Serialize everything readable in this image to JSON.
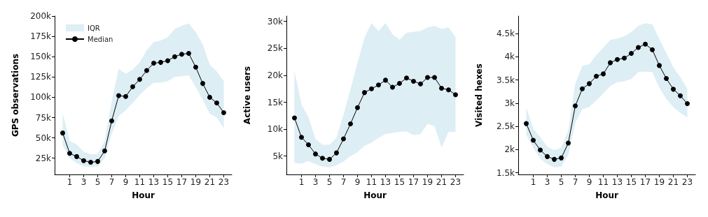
{
  "chart_data": [
    {
      "type": "line",
      "xlabel": "Hour",
      "ylabel": "GPS observations",
      "x": [
        0,
        1,
        2,
        3,
        4,
        5,
        6,
        7,
        8,
        9,
        10,
        11,
        12,
        13,
        14,
        15,
        16,
        17,
        18,
        19,
        20,
        21,
        22,
        23
      ],
      "xlim": [
        -1.15,
        24.15
      ],
      "xticks": [
        1,
        3,
        5,
        7,
        9,
        11,
        13,
        15,
        17,
        19,
        21,
        23
      ],
      "ylim": [
        5000,
        200000
      ],
      "yticks": [
        {
          "value": 25000,
          "label": "25k"
        },
        {
          "value": 50000,
          "label": "50k"
        },
        {
          "value": 75000,
          "label": "75k"
        },
        {
          "value": 100000,
          "label": "100k"
        },
        {
          "value": 125000,
          "label": "125k"
        },
        {
          "value": 150000,
          "label": "150k"
        },
        {
          "value": 175000,
          "label": "175k"
        },
        {
          "value": 200000,
          "label": "200k"
        }
      ],
      "grid": false,
      "legend": "top left",
      "marker": "circle",
      "line_style": "solid",
      "series": [
        {
          "name": "IQR",
          "type": "area",
          "color": "#ddeef5",
          "values": [
            null,
            null,
            null,
            null,
            null,
            null,
            null,
            null,
            null,
            null,
            null,
            null,
            null,
            null,
            null,
            null,
            null,
            null,
            null,
            null,
            null,
            null,
            null,
            null
          ],
          "lower": [
            41000,
            25000,
            19000,
            15000,
            14000,
            15000,
            25000,
            55000,
            77000,
            84000,
            93000,
            103000,
            111000,
            118000,
            118000,
            120000,
            125000,
            126000,
            127000,
            113000,
            97000,
            80000,
            75000,
            62000
          ],
          "upper": [
            81000,
            46000,
            42000,
            33000,
            30000,
            30000,
            46000,
            95000,
            135000,
            129000,
            134000,
            143000,
            158000,
            168000,
            170000,
            174000,
            184000,
            188000,
            191000,
            180000,
            165000,
            140000,
            132000,
            120000
          ]
        },
        {
          "name": "Median",
          "color": "#000000",
          "values": [
            56000,
            31000,
            27000,
            22000,
            20000,
            21000,
            34000,
            71000,
            102000,
            101000,
            113000,
            122000,
            133000,
            142000,
            143000,
            145000,
            150000,
            153000,
            154000,
            137000,
            117000,
            100000,
            93000,
            81000
          ]
        }
      ]
    },
    {
      "type": "line",
      "xlabel": "Hour",
      "ylabel": "Active users",
      "x": [
        0,
        1,
        2,
        3,
        4,
        5,
        6,
        7,
        8,
        9,
        10,
        11,
        12,
        13,
        14,
        15,
        16,
        17,
        18,
        19,
        20,
        21,
        22,
        23
      ],
      "xlim": [
        -1.15,
        24.15
      ],
      "xticks": [
        1,
        3,
        5,
        7,
        9,
        11,
        13,
        15,
        17,
        19,
        21,
        23
      ],
      "ylim": [
        1600,
        31000
      ],
      "yticks": [
        {
          "value": 5000,
          "label": "5k"
        },
        {
          "value": 10000,
          "label": "10k"
        },
        {
          "value": 15000,
          "label": "15k"
        },
        {
          "value": 20000,
          "label": "20k"
        },
        {
          "value": 25000,
          "label": "25k"
        },
        {
          "value": 30000,
          "label": "30k"
        }
      ],
      "grid": false,
      "marker": "circle",
      "line_style": "solid",
      "series": [
        {
          "type": "area",
          "color": "#ddeef5",
          "values": [
            null,
            null,
            null,
            null,
            null,
            null,
            null,
            null,
            null,
            null,
            null,
            null,
            null,
            null,
            null,
            null,
            null,
            null,
            null,
            null,
            null,
            null,
            null,
            null
          ],
          "lower": [
            3700,
            3600,
            4100,
            3500,
            3100,
            2900,
            3300,
            4000,
            5000,
            5700,
            6900,
            7500,
            8400,
            9100,
            9300,
            9500,
            9600,
            8900,
            9100,
            11000,
            10600,
            6600,
            9500,
            9500
          ],
          "upper": [
            20800,
            14600,
            12200,
            8200,
            7100,
            7100,
            8400,
            12700,
            17400,
            22300,
            27000,
            29700,
            28200,
            29700,
            27600,
            26600,
            27900,
            28100,
            28200,
            28900,
            29200,
            28600,
            28900,
            27100
          ]
        },
        {
          "color": "#000000",
          "values": [
            12100,
            8500,
            7100,
            5400,
            4600,
            4400,
            5600,
            8200,
            11000,
            14000,
            16800,
            17500,
            18200,
            19100,
            17800,
            18500,
            19500,
            18900,
            18400,
            19600,
            19600,
            17600,
            17300,
            16400
          ]
        }
      ]
    },
    {
      "type": "line",
      "xlabel": "Hour",
      "ylabel": "Visited hexes",
      "x": [
        0,
        1,
        2,
        3,
        4,
        5,
        6,
        7,
        8,
        9,
        10,
        11,
        12,
        13,
        14,
        15,
        16,
        17,
        18,
        19,
        20,
        21,
        22,
        23
      ],
      "xlim": [
        -1.15,
        24.15
      ],
      "xticks": [
        1,
        3,
        5,
        7,
        9,
        11,
        13,
        15,
        17,
        19,
        21,
        23
      ],
      "ylim": [
        1465,
        4875
      ],
      "yticks": [
        {
          "value": 1500,
          "label": "1.5k"
        },
        {
          "value": 2000,
          "label": "2k"
        },
        {
          "value": 2500,
          "label": "2.5k"
        },
        {
          "value": 3000,
          "label": "3k"
        },
        {
          "value": 3500,
          "label": "3.5k"
        },
        {
          "value": 4000,
          "label": "4k"
        },
        {
          "value": 4500,
          "label": "4.5k"
        }
      ],
      "grid": false,
      "marker": "circle",
      "line_style": "solid",
      "series": [
        {
          "type": "area",
          "color": "#ddeef5",
          "values": [
            null,
            null,
            null,
            null,
            null,
            null,
            null,
            null,
            null,
            null,
            null,
            null,
            null,
            null,
            null,
            null,
            null,
            null,
            null,
            null,
            null,
            null,
            null,
            null
          ],
          "lower": [
            2320,
            2040,
            1800,
            1690,
            1620,
            1630,
            1880,
            2580,
            2870,
            2920,
            3060,
            3210,
            3370,
            3450,
            3470,
            3520,
            3670,
            3680,
            3670,
            3330,
            3090,
            2910,
            2790,
            2690
          ],
          "upper": [
            2910,
            2450,
            2270,
            2060,
            1990,
            2040,
            2410,
            3420,
            3800,
            3840,
            4030,
            4200,
            4360,
            4390,
            4440,
            4530,
            4670,
            4720,
            4690,
            4380,
            4080,
            3770,
            3560,
            3310
          ]
        },
        {
          "color": "#000000",
          "values": [
            2560,
            2200,
            1990,
            1850,
            1790,
            1820,
            2140,
            2940,
            3310,
            3420,
            3580,
            3630,
            3870,
            3940,
            3970,
            4070,
            4200,
            4270,
            4150,
            3810,
            3530,
            3300,
            3160,
            2990
          ]
        }
      ]
    }
  ]
}
